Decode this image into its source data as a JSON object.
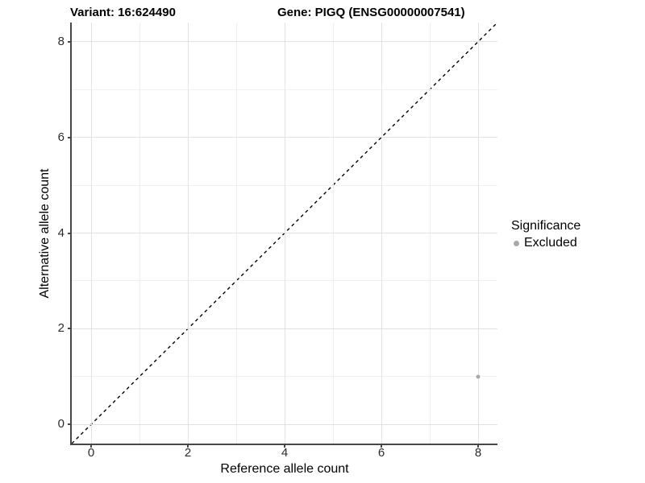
{
  "figure": {
    "title_left": "Variant: 16:624490",
    "title_right": "Gene: PIGQ (ENSG00000007541)"
  },
  "legend": {
    "title": "Significance",
    "items": [
      {
        "label": "Excluded",
        "color": "#a9a9a9"
      }
    ]
  },
  "chart_data": {
    "type": "scatter",
    "title": "Variant: 16:624490 — Gene: PIGQ (ENSG00000007541)",
    "xlabel": "Reference allele count",
    "ylabel": "Alternative allele count",
    "xlim": [
      -0.4,
      8.4
    ],
    "ylim": [
      -0.4,
      8.4
    ],
    "x_ticks": [
      0,
      2,
      4,
      6,
      8
    ],
    "y_ticks": [
      0,
      2,
      4,
      6,
      8
    ],
    "x_minor_ticks": [
      1,
      3,
      5,
      7
    ],
    "y_minor_ticks": [
      1,
      3,
      5,
      7
    ],
    "grid": {
      "major_color": "#e2e2e2",
      "minor_color": "#f0f0f0",
      "background": "#ffffff"
    },
    "axis_color": "#474747",
    "legend_position": "right",
    "series": [
      {
        "name": "Excluded",
        "color": "#a9a9a9",
        "points": [
          {
            "x": 8,
            "y": 1
          }
        ]
      }
    ],
    "reference_line": {
      "slope": 1,
      "intercept": 0,
      "linetype": "dashed",
      "color": "#000000"
    }
  }
}
